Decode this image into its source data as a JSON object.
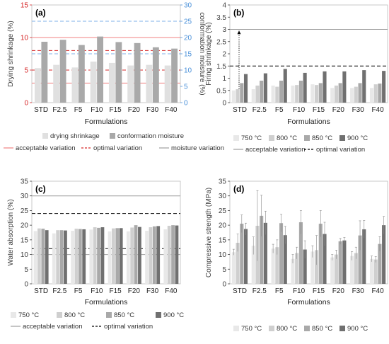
{
  "chart_data": [
    {
      "panel": "(a)",
      "type": "bar",
      "categories": [
        "STD",
        "F2.5",
        "F5",
        "F10",
        "F15",
        "F20",
        "F30",
        "F40"
      ],
      "xlabel": "Formulations",
      "ylabel": "Drying shrinkage (%)",
      "ylabel_right": "conformation moisture (%)",
      "ylim": [
        0,
        15
      ],
      "yticks": [
        0,
        5,
        10,
        15
      ],
      "ylim_right": [
        0,
        30
      ],
      "yticks_right": [
        0,
        5,
        10,
        15,
        20,
        25,
        30
      ],
      "series": [
        {
          "name": "drying shrinkage",
          "axis": "left",
          "color": "#e0e0e0",
          "values": [
            5.3,
            5.8,
            5.4,
            6.3,
            6.1,
            5.7,
            5.8,
            5.7
          ]
        },
        {
          "name": "conformation moisture",
          "axis": "right",
          "color": "#a9a9a9",
          "values": [
            18.7,
            19.3,
            17.7,
            20.3,
            18.6,
            18.3,
            17.0,
            16.6
          ]
        }
      ],
      "reference_lines": [
        {
          "axis": "left",
          "values": [
            3,
            10
          ],
          "style": "solid",
          "color": "#f08080"
        },
        {
          "axis": "left",
          "values": [
            5,
            8
          ],
          "style": "dashed",
          "color": "#d62728"
        },
        {
          "axis": "right",
          "values": [
            15,
            25
          ],
          "style": "dashed",
          "color": "#7fb2e8"
        }
      ],
      "legend": [
        "drying shrinkage",
        "conformation moisture"
      ],
      "legend2": [
        "acceptable variation",
        "optimal variation",
        "moisture variation"
      ]
    },
    {
      "panel": "(b)",
      "type": "bar",
      "categories": [
        "STD",
        "F2.5",
        "F5",
        "F10",
        "F15",
        "F20",
        "F30",
        "F40"
      ],
      "xlabel": "Formulations",
      "ylabel": "Firing shrinkage (%)",
      "ylim": [
        0,
        4
      ],
      "yticks": [
        0,
        0.5,
        1,
        1.5,
        2,
        2.5,
        3,
        3.5,
        4
      ],
      "series": [
        {
          "name": "750 °C",
          "color": "#e8e8e8",
          "values": [
            0.5,
            0.55,
            0.7,
            0.7,
            0.75,
            0.6,
            0.6,
            0.6
          ]
        },
        {
          "name": "800 °C",
          "color": "#cfcfcf",
          "values": [
            0.55,
            0.7,
            0.65,
            0.72,
            0.72,
            0.7,
            0.65,
            0.75
          ]
        },
        {
          "name": "850 °C",
          "color": "#a9a9a9",
          "values": [
            0.8,
            0.9,
            0.9,
            0.9,
            0.8,
            0.8,
            0.8,
            0.78
          ]
        },
        {
          "name": "900 °C",
          "color": "#707070",
          "values": [
            1.17,
            1.2,
            1.38,
            1.22,
            1.28,
            1.28,
            1.33,
            1.3
          ]
        }
      ],
      "reference_lines": [
        {
          "values": [
            3
          ],
          "style": "solid",
          "color": "#9e9e9e"
        },
        {
          "values": [
            1.5
          ],
          "style": "dashed",
          "color": "#000000"
        }
      ],
      "legend": [
        "750 °C",
        "800 °C",
        "850 °C",
        "900 °C"
      ],
      "legend2": [
        "acceptable variation",
        "optimal variation"
      ]
    },
    {
      "panel": "(c)",
      "type": "bar",
      "categories": [
        "STD",
        "F2.5",
        "F5",
        "F10",
        "F15",
        "F20",
        "F30",
        "F40"
      ],
      "xlabel": "Formulations",
      "ylabel": "Water absorption (%)",
      "ylim": [
        0,
        35
      ],
      "yticks": [
        0,
        5,
        10,
        15,
        20,
        25,
        30,
        35
      ],
      "series": [
        {
          "name": "750 °C",
          "color": "#e8e8e8",
          "values": [
            18.0,
            17.2,
            18.1,
            18.5,
            17.9,
            17.9,
            18.1,
            18.6
          ]
        },
        {
          "name": "800 °C",
          "color": "#cfcfcf",
          "values": [
            18.9,
            18.3,
            18.8,
            19.3,
            18.9,
            19.2,
            19.3,
            19.8
          ]
        },
        {
          "name": "850 °C",
          "color": "#a9a9a9",
          "values": [
            18.8,
            18.3,
            18.7,
            19.1,
            19.0,
            20.0,
            19.6,
            20.0
          ]
        },
        {
          "name": "900 °C",
          "color": "#707070",
          "values": [
            18.3,
            18.2,
            18.6,
            19.3,
            19.0,
            19.4,
            19.7,
            19.9
          ]
        }
      ],
      "reference_lines": [
        {
          "values": [
            10,
            30
          ],
          "style": "solid",
          "color": "#9e9e9e"
        },
        {
          "values": [
            12,
            24
          ],
          "style": "dashed",
          "color": "#000000"
        }
      ],
      "legend": [
        "750 °C",
        "800 °C",
        "850 °C",
        "900 °C"
      ],
      "legend2": [
        "acceptable variation",
        "optimal variation"
      ]
    },
    {
      "panel": "(d)",
      "type": "bar",
      "categories": [
        "STD",
        "F2.5",
        "F5",
        "F10",
        "F15",
        "F20",
        "F30",
        "F40"
      ],
      "xlabel": "Formulations",
      "ylabel": "Compressive strength (MPa)",
      "ylim": [
        0,
        35
      ],
      "yticks": [
        0,
        5,
        10,
        15,
        20,
        25,
        30,
        35
      ],
      "series": [
        {
          "name": "750 °C",
          "color": "#e8e8e8",
          "values": [
            10.8,
            13.0,
            12.0,
            8.5,
            11.0,
            9.0,
            9.5,
            8.5
          ],
          "errors": [
            1.0,
            3.0,
            1.5,
            1.5,
            2.0,
            1.0,
            1.5,
            1.0
          ]
        },
        {
          "name": "800 °C",
          "color": "#cfcfcf",
          "values": [
            14.0,
            19.8,
            12.5,
            10.5,
            11.5,
            10.0,
            10.5,
            8.3
          ],
          "errors": [
            3.0,
            12.0,
            2.5,
            2.0,
            5.0,
            1.5,
            2.0,
            1.0
          ]
        },
        {
          "name": "850 °C",
          "color": "#a9a9a9",
          "values": [
            20.5,
            23.2,
            20.7,
            21.0,
            20.5,
            14.5,
            16.5,
            13.6
          ],
          "errors": [
            3.0,
            7.0,
            3.0,
            4.0,
            4.5,
            1.0,
            5.0,
            2.5
          ]
        },
        {
          "name": "900 °C",
          "color": "#707070",
          "values": [
            18.7,
            20.8,
            16.6,
            11.7,
            17.0,
            14.8,
            18.6,
            20.0
          ],
          "errors": [
            2.0,
            4.0,
            3.0,
            3.0,
            4.0,
            1.0,
            3.0,
            3.0
          ]
        }
      ],
      "legend": [
        "750 °C",
        "800 °C",
        "850 °C",
        "900 °C"
      ]
    }
  ]
}
